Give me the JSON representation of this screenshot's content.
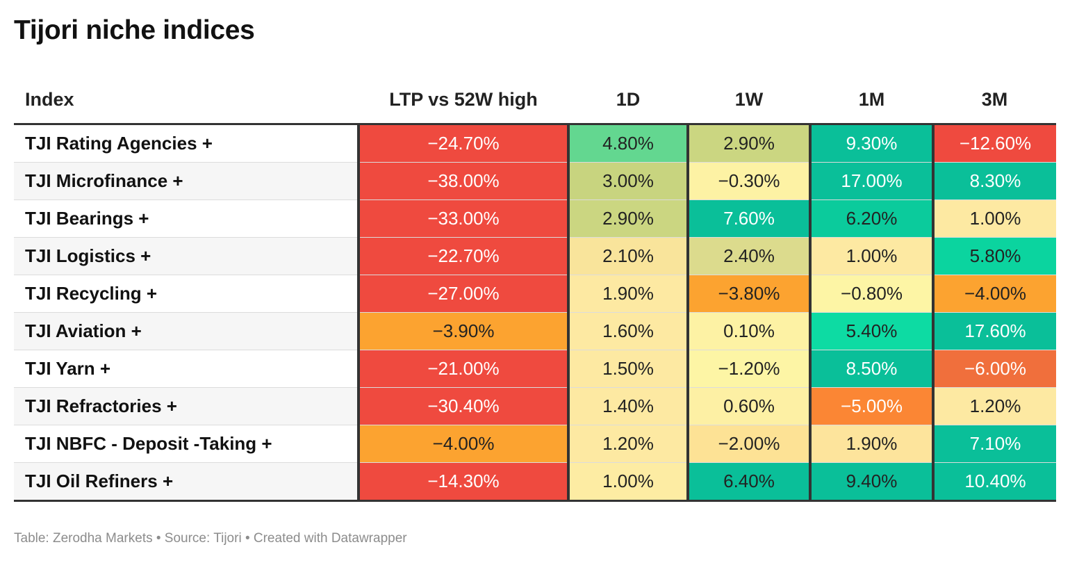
{
  "title": "Tijori niche indices",
  "footer": "Table: Zerodha Markets • Source: Tijori • Created with Datawrapper",
  "chart_data": {
    "type": "table",
    "columns": [
      "Index",
      "LTP vs 52W high",
      "1D",
      "1W",
      "1M",
      "3M"
    ],
    "rows": [
      {
        "name": "TJI Rating Agencies +",
        "values": [
          "−24.70%",
          "4.80%",
          "2.90%",
          "9.30%",
          "−12.60%"
        ],
        "bg": [
          "#ef4a3f",
          "#63d790",
          "#cbd681",
          "#0abf99",
          "#ef4a3f"
        ],
        "fg": [
          "#ffffff",
          "#222222",
          "#222222",
          "#ffffff",
          "#ffffff"
        ]
      },
      {
        "name": "TJI Microfinance +",
        "values": [
          "−38.00%",
          "3.00%",
          "−0.30%",
          "17.00%",
          "8.30%"
        ],
        "bg": [
          "#ef4a3f",
          "#c8d47f",
          "#fdf2a4",
          "#0abf99",
          "#0abf99"
        ],
        "fg": [
          "#ffffff",
          "#222222",
          "#222222",
          "#ffffff",
          "#ffffff"
        ]
      },
      {
        "name": "TJI Bearings +",
        "values": [
          "−33.00%",
          "2.90%",
          "7.60%",
          "6.20%",
          "1.00%"
        ],
        "bg": [
          "#ef4a3f",
          "#cbd681",
          "#0abf99",
          "#0bcb9c",
          "#fde9a2"
        ],
        "fg": [
          "#ffffff",
          "#222222",
          "#ffffff",
          "#222222",
          "#222222"
        ]
      },
      {
        "name": "TJI Logistics +",
        "values": [
          "−22.70%",
          "2.10%",
          "2.40%",
          "1.00%",
          "5.80%"
        ],
        "bg": [
          "#ef4a3f",
          "#f9e49b",
          "#dcdb8d",
          "#fde9a2",
          "#0bd49f"
        ],
        "fg": [
          "#ffffff",
          "#222222",
          "#222222",
          "#222222",
          "#222222"
        ]
      },
      {
        "name": "TJI Recycling +",
        "values": [
          "−27.00%",
          "1.90%",
          "−3.80%",
          "−0.80%",
          "−4.00%"
        ],
        "bg": [
          "#ef4a3f",
          "#fde9a2",
          "#fca330",
          "#fdf5a5",
          "#fca330"
        ],
        "fg": [
          "#ffffff",
          "#222222",
          "#222222",
          "#222222",
          "#222222"
        ]
      },
      {
        "name": "TJI Aviation +",
        "values": [
          "−3.90%",
          "1.60%",
          "0.10%",
          "5.40%",
          "17.60%"
        ],
        "bg": [
          "#fca330",
          "#fde9a2",
          "#fdf2a4",
          "#0ddba3",
          "#0abf99"
        ],
        "fg": [
          "#222222",
          "#222222",
          "#222222",
          "#222222",
          "#ffffff"
        ]
      },
      {
        "name": "TJI Yarn +",
        "values": [
          "−21.00%",
          "1.50%",
          "−1.20%",
          "8.50%",
          "−6.00%"
        ],
        "bg": [
          "#ef4a3f",
          "#fde9a2",
          "#fdf5a5",
          "#0abf99",
          "#f06f3c"
        ],
        "fg": [
          "#ffffff",
          "#222222",
          "#222222",
          "#ffffff",
          "#ffffff"
        ]
      },
      {
        "name": "TJI Refractories +",
        "values": [
          "−30.40%",
          "1.40%",
          "0.60%",
          "−5.00%",
          "1.20%"
        ],
        "bg": [
          "#ef4a3f",
          "#fde9a2",
          "#fdf0a4",
          "#fb8634",
          "#fde9a2"
        ],
        "fg": [
          "#ffffff",
          "#222222",
          "#222222",
          "#ffffff",
          "#222222"
        ]
      },
      {
        "name": "TJI NBFC - Deposit -Taking +",
        "values": [
          "−4.00%",
          "1.20%",
          "−2.00%",
          "1.90%",
          "7.10%"
        ],
        "bg": [
          "#fca330",
          "#fde9a2",
          "#fde295",
          "#fde49c",
          "#0abf99"
        ],
        "fg": [
          "#222222",
          "#222222",
          "#222222",
          "#222222",
          "#ffffff"
        ]
      },
      {
        "name": "TJI Oil Refiners +",
        "values": [
          "−14.30%",
          "1.00%",
          "6.40%",
          "9.40%",
          "10.40%"
        ],
        "bg": [
          "#ef4a3f",
          "#fdeca3",
          "#0abf99",
          "#0abf99",
          "#0abf99"
        ],
        "fg": [
          "#ffffff",
          "#222222",
          "#222222",
          "#222222",
          "#ffffff"
        ]
      }
    ]
  }
}
